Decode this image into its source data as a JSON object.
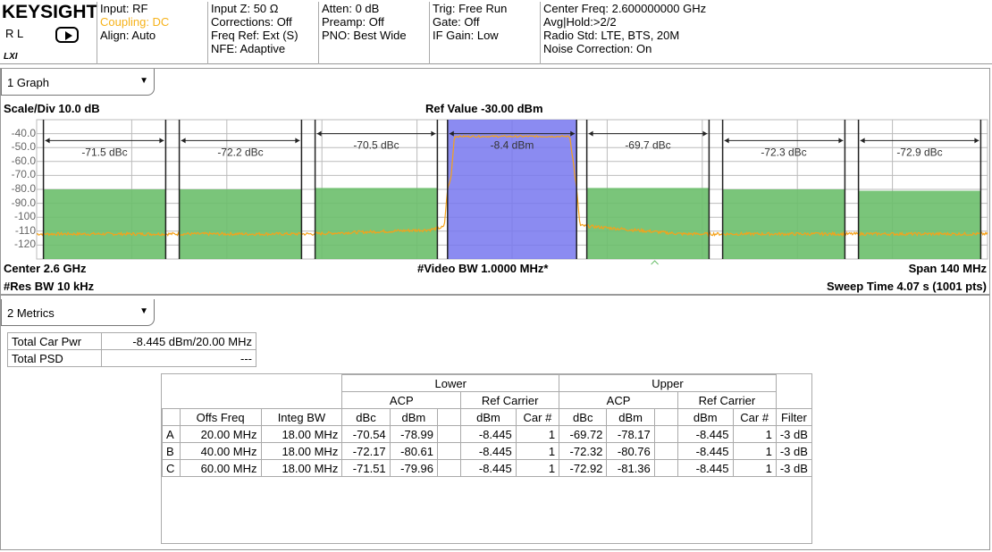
{
  "header": {
    "brand": "KEYSIGHT",
    "mode": "R L",
    "lxi": "LXI",
    "col1": [
      "Input: RF",
      "Coupling: DC",
      "Align: Auto"
    ],
    "col2": [
      "Input Z: 50 Ω",
      "Corrections: Off",
      "Freq Ref: Ext (S)",
      "NFE: Adaptive"
    ],
    "col3": [
      "Atten: 0 dB",
      "Preamp: Off",
      "PNO: Best Wide"
    ],
    "col4": [
      "Trig: Free Run",
      "Gate: Off",
      "IF Gain: Low"
    ],
    "col5": [
      "Center Freq: 2.600000000 GHz",
      "Avg|Hold:>2/2",
      "Radio Std: LTE, BTS, 20M",
      "Noise Correction: On"
    ]
  },
  "graph": {
    "dropdown": "1 Graph",
    "scale": "Scale/Div 10.0 dB",
    "ref": "Ref Value -30.00 dBm",
    "center": "Center 2.6 GHz",
    "res_bw": "#Res BW 10 kHz",
    "video_bw": "#Video BW 1.0000 MHz*",
    "span": "Span 140 MHz",
    "sweep": "Sweep Time 4.07 s (1001 pts)"
  },
  "chart_data": {
    "type": "line",
    "xlim_mhz": [
      -70,
      70
    ],
    "ylim": [
      -130,
      -30
    ],
    "grid": true,
    "yticks": [
      "-40.0",
      "-50.0",
      "-60.0",
      "-70.0",
      "-80.0",
      "-90.0",
      "-100",
      "-110",
      "-120"
    ],
    "carrier": {
      "from": -9,
      "to": 9,
      "label": "-8.4 dBm",
      "color": "#7777ee",
      "level": -42
    },
    "offsets": [
      {
        "side": "lower",
        "from": -69,
        "to": -51,
        "label": "-71.5 dBc",
        "limit": -80,
        "bar_level": -45
      },
      {
        "side": "lower",
        "from": -49,
        "to": -31,
        "label": "-72.2 dBc",
        "limit": -80,
        "bar_level": -45
      },
      {
        "side": "lower",
        "from": -29,
        "to": -11,
        "label": "-70.5 dBc",
        "limit": -79,
        "bar_level": -40
      },
      {
        "side": "upper",
        "from": 11,
        "to": 29,
        "label": "-69.7 dBc",
        "limit": -79,
        "bar_level": -40
      },
      {
        "side": "upper",
        "from": 31,
        "to": 49,
        "label": "-72.3 dBc",
        "limit": -80,
        "bar_level": -45
      },
      {
        "side": "upper",
        "from": 51,
        "to": 69,
        "label": "-72.9 dBc",
        "limit": -81,
        "bar_level": -45
      }
    ],
    "trace": [
      [
        -70,
        -112
      ],
      [
        -30,
        -112
      ],
      [
        -12,
        -109
      ],
      [
        -10,
        -107
      ],
      [
        -9.5,
        -80
      ],
      [
        -9,
        -72
      ],
      [
        -8.5,
        -42
      ],
      [
        8.5,
        -42
      ],
      [
        9,
        -60
      ],
      [
        9.5,
        -80
      ],
      [
        10,
        -106
      ],
      [
        15,
        -108
      ],
      [
        25,
        -112
      ],
      [
        70,
        -112
      ]
    ],
    "trace_color": "#f5a21a",
    "limit_color": "#6bbf6b"
  },
  "metrics": {
    "dropdown": "2 Metrics",
    "summary": [
      [
        "Total Car Pwr",
        "-8.445 dBm/20.00 MHz"
      ],
      [
        "Total PSD",
        "---"
      ]
    ],
    "table": {
      "lower": "Lower",
      "upper": "Upper",
      "acp": "ACP",
      "ref_carrier": "Ref Carrier",
      "cols": [
        "",
        "Offs Freq",
        "Integ BW",
        "dBc",
        "dBm",
        "",
        "dBm",
        "Car #",
        "dBc",
        "dBm",
        "",
        "dBm",
        "Car #",
        "Filter"
      ],
      "rows": [
        [
          "A",
          "20.00 MHz",
          "18.00 MHz",
          "-70.54",
          "-78.99",
          "",
          "-8.445",
          "1",
          "-69.72",
          "-78.17",
          "",
          "-8.445",
          "1",
          "-3 dB"
        ],
        [
          "B",
          "40.00 MHz",
          "18.00 MHz",
          "-72.17",
          "-80.61",
          "",
          "-8.445",
          "1",
          "-72.32",
          "-80.76",
          "",
          "-8.445",
          "1",
          "-3 dB"
        ],
        [
          "C",
          "60.00 MHz",
          "18.00 MHz",
          "-71.51",
          "-79.96",
          "",
          "-8.445",
          "1",
          "-72.92",
          "-81.36",
          "",
          "-8.445",
          "1",
          "-3 dB"
        ]
      ]
    }
  }
}
